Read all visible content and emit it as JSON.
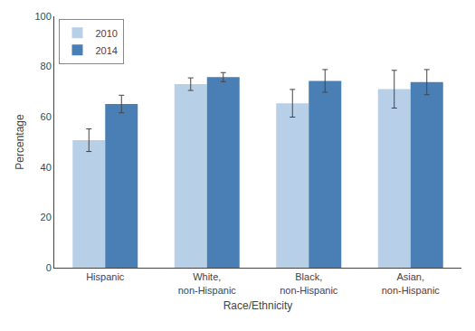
{
  "chart_data": {
    "type": "bar",
    "xlabel": "Race/Ethnicity",
    "ylabel": "Percentage",
    "categories": [
      "Hispanic",
      "White,\nnon-Hispanic",
      "Black,\nnon-Hispanic",
      "Asian,\nnon-Hispanic"
    ],
    "series": [
      {
        "name": "2010",
        "color": "#b8cfe8",
        "values": [
          50.7,
          73.0,
          65.4,
          71.0
        ],
        "errors": [
          4.5,
          2.5,
          5.5,
          7.5
        ]
      },
      {
        "name": "2014",
        "color": "#4a7fb5",
        "values": [
          65.1,
          75.8,
          74.3,
          73.8
        ],
        "errors": [
          3.5,
          1.8,
          4.5,
          5.0
        ]
      }
    ],
    "ylim": [
      0,
      100
    ],
    "yticks": [
      0,
      20,
      40,
      60,
      80,
      100
    ],
    "grid": false,
    "legend": "upper left"
  }
}
